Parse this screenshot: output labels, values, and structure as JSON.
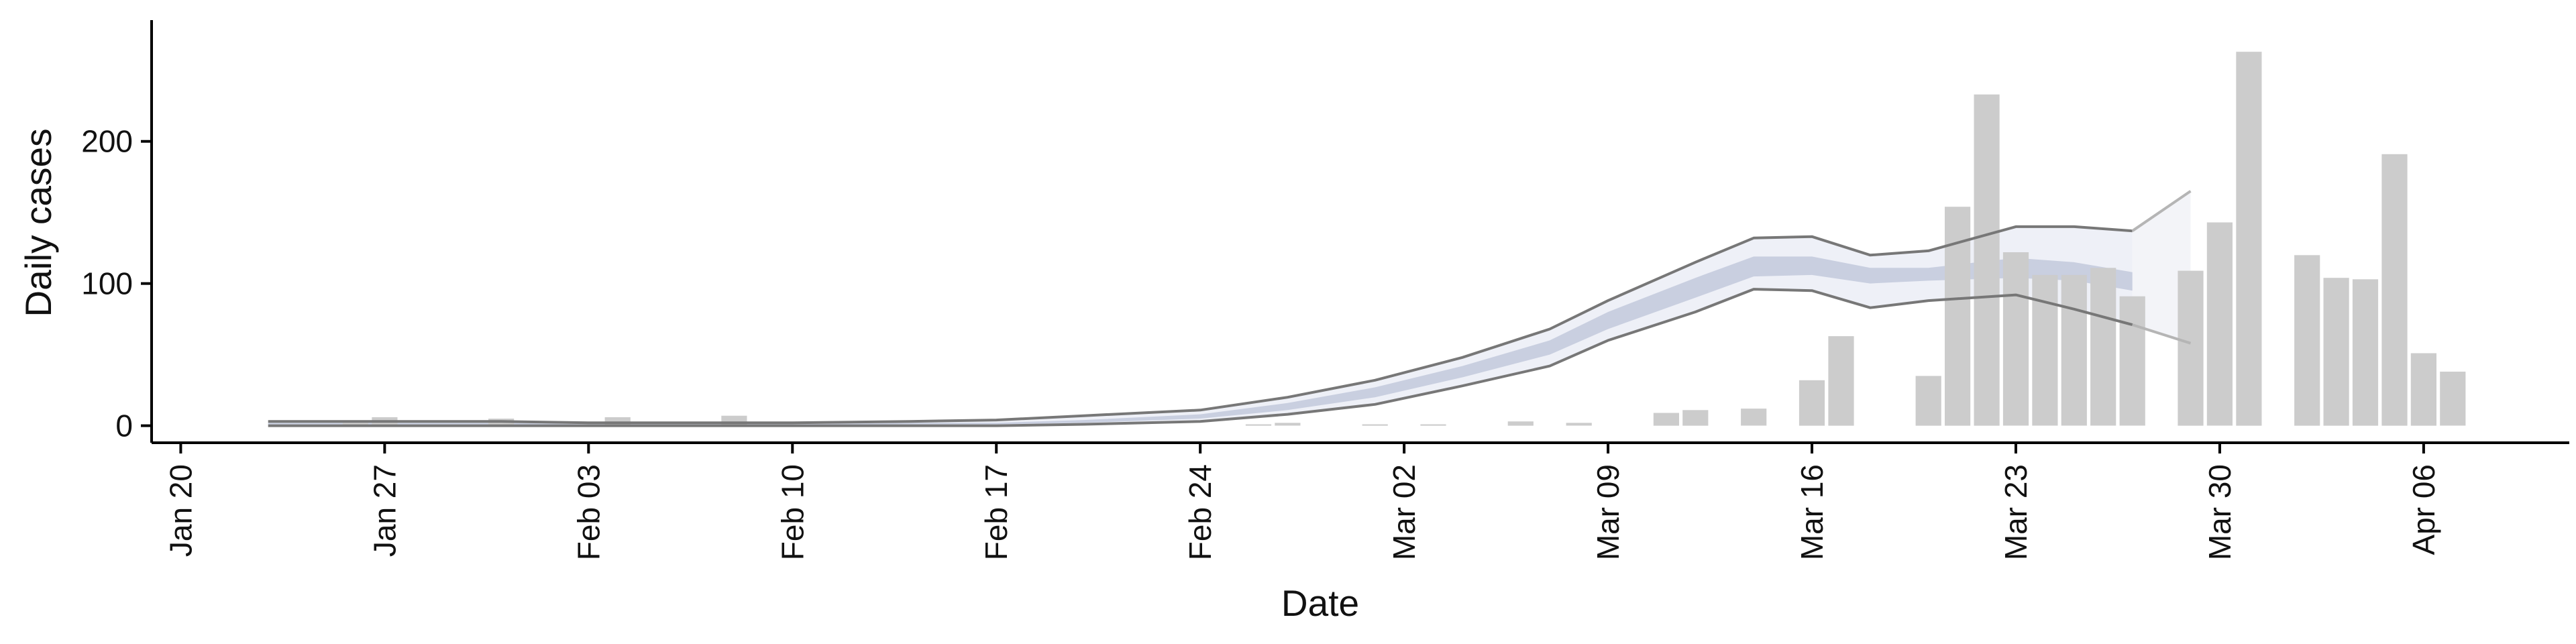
{
  "chart_data": {
    "type": "bar",
    "title": "",
    "xlabel": "Date",
    "ylabel": "Daily cases",
    "x_range": [
      "2020-01-19",
      "2020-04-11"
    ],
    "ylim": [
      -12,
      290
    ],
    "x_ticks": [
      {
        "date": "2020-01-20",
        "label": "Jan 20"
      },
      {
        "date": "2020-01-27",
        "label": "Jan 27"
      },
      {
        "date": "2020-02-03",
        "label": "Feb 03"
      },
      {
        "date": "2020-02-10",
        "label": "Feb 10"
      },
      {
        "date": "2020-02-17",
        "label": "Feb 17"
      },
      {
        "date": "2020-02-24",
        "label": "Feb 24"
      },
      {
        "date": "2020-03-02",
        "label": "Mar 02"
      },
      {
        "date": "2020-03-09",
        "label": "Mar 09"
      },
      {
        "date": "2020-03-16",
        "label": "Mar 16"
      },
      {
        "date": "2020-03-23",
        "label": "Mar 23"
      },
      {
        "date": "2020-03-30",
        "label": "Mar 30"
      },
      {
        "date": "2020-04-06",
        "label": "Apr 06"
      }
    ],
    "y_ticks": [
      {
        "value": 0,
        "label": "0"
      },
      {
        "value": 100,
        "label": "100"
      },
      {
        "value": 200,
        "label": "200"
      }
    ],
    "grid": false,
    "colors": {
      "bars": "#cccccc",
      "outer_band": "#eef0f7",
      "inner_band": "#c9cfe0",
      "bounds": "#777777",
      "projection_band": "#f3f4f8",
      "projection_bounds": "#b5b5b5",
      "axis": "#000000"
    },
    "bars": [
      {
        "date": "2020-01-26",
        "value": 2
      },
      {
        "date": "2020-01-27",
        "value": 6
      },
      {
        "date": "2020-01-31",
        "value": 5
      },
      {
        "date": "2020-02-04",
        "value": 6
      },
      {
        "date": "2020-02-08",
        "value": 7
      },
      {
        "date": "2020-02-26",
        "value": 1
      },
      {
        "date": "2020-02-27",
        "value": 2
      },
      {
        "date": "2020-03-01",
        "value": 1
      },
      {
        "date": "2020-03-03",
        "value": 1
      },
      {
        "date": "2020-03-06",
        "value": 3
      },
      {
        "date": "2020-03-08",
        "value": 2
      },
      {
        "date": "2020-03-11",
        "value": 9
      },
      {
        "date": "2020-03-12",
        "value": 11
      },
      {
        "date": "2020-03-14",
        "value": 12
      },
      {
        "date": "2020-03-16",
        "value": 32
      },
      {
        "date": "2020-03-17",
        "value": 63
      },
      {
        "date": "2020-03-20",
        "value": 35
      },
      {
        "date": "2020-03-21",
        "value": 154
      },
      {
        "date": "2020-03-22",
        "value": 233
      },
      {
        "date": "2020-03-23",
        "value": 122
      },
      {
        "date": "2020-03-24",
        "value": 106
      },
      {
        "date": "2020-03-25",
        "value": 106
      },
      {
        "date": "2020-03-26",
        "value": 111
      },
      {
        "date": "2020-03-27",
        "value": 91
      },
      {
        "date": "2020-03-29",
        "value": 109
      },
      {
        "date": "2020-03-30",
        "value": 143
      },
      {
        "date": "2020-03-31",
        "value": 263
      },
      {
        "date": "2020-04-02",
        "value": 120
      },
      {
        "date": "2020-04-03",
        "value": 104
      },
      {
        "date": "2020-04-04",
        "value": 103
      },
      {
        "date": "2020-04-05",
        "value": 191
      },
      {
        "date": "2020-04-06",
        "value": 51
      },
      {
        "date": "2020-04-07",
        "value": 38
      }
    ],
    "estimate": [
      {
        "date": "2020-01-23",
        "lower": 0,
        "upper": 3,
        "inner_lower": 1,
        "inner_upper": 2
      },
      {
        "date": "2020-01-27",
        "lower": 0,
        "upper": 3,
        "inner_lower": 1,
        "inner_upper": 2
      },
      {
        "date": "2020-01-31",
        "lower": 0,
        "upper": 3,
        "inner_lower": 1,
        "inner_upper": 2
      },
      {
        "date": "2020-02-03",
        "lower": 0,
        "upper": 2,
        "inner_lower": 0,
        "inner_upper": 1
      },
      {
        "date": "2020-02-07",
        "lower": 0,
        "upper": 2,
        "inner_lower": 0,
        "inner_upper": 1
      },
      {
        "date": "2020-02-10",
        "lower": 0,
        "upper": 2,
        "inner_lower": 0,
        "inner_upper": 1
      },
      {
        "date": "2020-02-14",
        "lower": 0,
        "upper": 3,
        "inner_lower": 1,
        "inner_upper": 2
      },
      {
        "date": "2020-02-17",
        "lower": 0,
        "upper": 4,
        "inner_lower": 1,
        "inner_upper": 2
      },
      {
        "date": "2020-02-20",
        "lower": 1,
        "upper": 7,
        "inner_lower": 2,
        "inner_upper": 4
      },
      {
        "date": "2020-02-24",
        "lower": 3,
        "upper": 11,
        "inner_lower": 5,
        "inner_upper": 8
      },
      {
        "date": "2020-02-27",
        "lower": 8,
        "upper": 20,
        "inner_lower": 11,
        "inner_upper": 16
      },
      {
        "date": "2020-03-01",
        "lower": 15,
        "upper": 32,
        "inner_lower": 20,
        "inner_upper": 27
      },
      {
        "date": "2020-03-04",
        "lower": 28,
        "upper": 48,
        "inner_lower": 34,
        "inner_upper": 42
      },
      {
        "date": "2020-03-07",
        "lower": 42,
        "upper": 68,
        "inner_lower": 50,
        "inner_upper": 60
      },
      {
        "date": "2020-03-09",
        "lower": 60,
        "upper": 88,
        "inner_lower": 68,
        "inner_upper": 80
      },
      {
        "date": "2020-03-12",
        "lower": 80,
        "upper": 115,
        "inner_lower": 90,
        "inner_upper": 104
      },
      {
        "date": "2020-03-14",
        "lower": 96,
        "upper": 132,
        "inner_lower": 105,
        "inner_upper": 119
      },
      {
        "date": "2020-03-16",
        "lower": 95,
        "upper": 133,
        "inner_lower": 106,
        "inner_upper": 119
      },
      {
        "date": "2020-03-18",
        "lower": 83,
        "upper": 120,
        "inner_lower": 100,
        "inner_upper": 111
      },
      {
        "date": "2020-03-20",
        "lower": 88,
        "upper": 123,
        "inner_lower": 102,
        "inner_upper": 111
      },
      {
        "date": "2020-03-23",
        "lower": 92,
        "upper": 140,
        "inner_lower": 104,
        "inner_upper": 118
      },
      {
        "date": "2020-03-25",
        "lower": 82,
        "upper": 140,
        "inner_lower": 102,
        "inner_upper": 115
      },
      {
        "date": "2020-03-27",
        "lower": 71,
        "upper": 137,
        "inner_lower": 95,
        "inner_upper": 108
      }
    ],
    "projection": [
      {
        "date": "2020-03-27",
        "lower": 71,
        "upper": 137
      },
      {
        "date": "2020-03-29",
        "lower": 58,
        "upper": 165
      }
    ]
  }
}
